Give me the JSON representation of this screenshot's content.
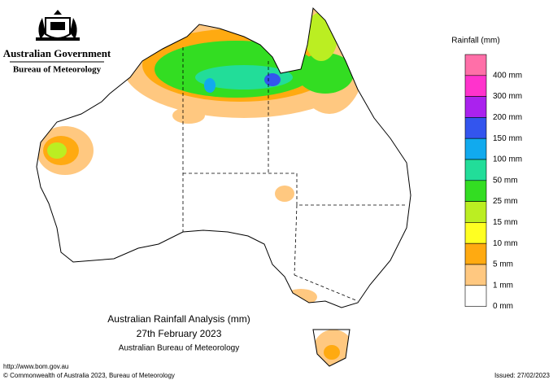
{
  "header": {
    "government": "Australian Government",
    "agency": "Bureau of Meteorology"
  },
  "legend": {
    "title": "Rainfall (mm)",
    "items": [
      {
        "label": "400 mm",
        "color": "#ff6fa8"
      },
      {
        "label": "300 mm",
        "color": "#ff33cc"
      },
      {
        "label": "200 mm",
        "color": "#aa22ee"
      },
      {
        "label": "150 mm",
        "color": "#3355ee"
      },
      {
        "label": "100 mm",
        "color": "#11aaee"
      },
      {
        "label": "50 mm",
        "color": "#22dd99"
      },
      {
        "label": "25 mm",
        "color": "#33dd22"
      },
      {
        "label": "15 mm",
        "color": "#bbee22"
      },
      {
        "label": "10 mm",
        "color": "#ffff22"
      },
      {
        "label": "5 mm",
        "color": "#ffaa11"
      },
      {
        "label": "1 mm",
        "color": "#ffc880"
      },
      {
        "label": "0 mm",
        "color": "#ffffff"
      }
    ]
  },
  "map_title": {
    "line1": "Australian Rainfall Analysis (mm)",
    "line2": "27th February 2023",
    "line3": "Australian Bureau of Meteorology"
  },
  "footer": {
    "url": "http://www.bom.gov.au",
    "copyright": "© Commonwealth of Australia 2023, Bureau of Meteorology",
    "issued": "Issued: 27/02/2023"
  }
}
